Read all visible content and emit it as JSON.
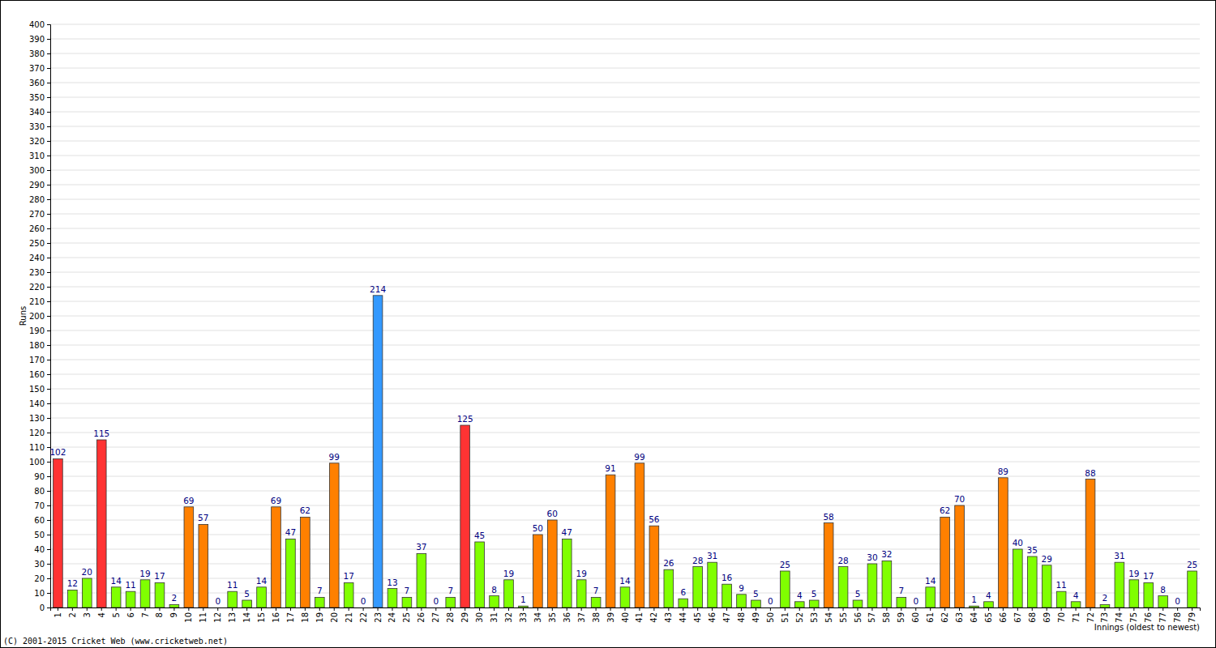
{
  "chart_data": {
    "type": "bar",
    "x_label": "Innings (oldest to newest)",
    "y_label": "Runs",
    "annotations": [
      "(C) 2001-2015 Cricket Web (www.cricketweb.net)"
    ],
    "categories": [
      "1",
      "2",
      "3",
      "4",
      "5",
      "6",
      "7",
      "8",
      "9",
      "10",
      "11",
      "12",
      "13",
      "14",
      "15",
      "16",
      "17",
      "18",
      "19",
      "20",
      "21",
      "22",
      "23",
      "24",
      "25",
      "26",
      "27",
      "28",
      "29",
      "30",
      "31",
      "32",
      "33",
      "34",
      "35",
      "36",
      "37",
      "38",
      "39",
      "40",
      "41",
      "42",
      "43",
      "44",
      "45",
      "46",
      "47",
      "48",
      "49",
      "50",
      "51",
      "52",
      "53",
      "54",
      "55",
      "56",
      "57",
      "58",
      "59",
      "60",
      "61",
      "62",
      "63",
      "64",
      "65",
      "66",
      "67",
      "68",
      "69",
      "70",
      "71",
      "72",
      "73",
      "74",
      "75",
      "76",
      "77",
      "78",
      "79"
    ],
    "values": [
      102,
      12,
      20,
      115,
      14,
      11,
      19,
      17,
      2,
      69,
      57,
      0,
      11,
      5,
      14,
      69,
      47,
      62,
      7,
      99,
      17,
      0,
      214,
      13,
      7,
      37,
      0,
      7,
      125,
      45,
      8,
      19,
      1,
      50,
      60,
      47,
      19,
      7,
      91,
      14,
      99,
      56,
      26,
      6,
      28,
      31,
      16,
      9,
      5,
      0,
      25,
      4,
      5,
      58,
      28,
      5,
      30,
      32,
      7,
      0,
      14,
      62,
      70,
      1,
      4,
      89,
      40,
      35,
      29,
      11,
      4,
      88,
      2,
      31,
      19,
      17,
      8,
      0,
      25
    ],
    "colors": [
      "#ff3333",
      "#80ff00",
      "#80ff00",
      "#ff3333",
      "#80ff00",
      "#80ff00",
      "#80ff00",
      "#80ff00",
      "#80ff00",
      "#ff8000",
      "#ff8000",
      "#80ff00",
      "#80ff00",
      "#80ff00",
      "#80ff00",
      "#ff8000",
      "#80ff00",
      "#ff8000",
      "#80ff00",
      "#ff8000",
      "#80ff00",
      "#80ff00",
      "#3399ff",
      "#80ff00",
      "#80ff00",
      "#80ff00",
      "#80ff00",
      "#80ff00",
      "#ff3333",
      "#80ff00",
      "#80ff00",
      "#80ff00",
      "#80ff00",
      "#ff8000",
      "#ff8000",
      "#80ff00",
      "#80ff00",
      "#80ff00",
      "#ff8000",
      "#80ff00",
      "#ff8000",
      "#ff8000",
      "#80ff00",
      "#80ff00",
      "#80ff00",
      "#80ff00",
      "#80ff00",
      "#80ff00",
      "#80ff00",
      "#80ff00",
      "#80ff00",
      "#80ff00",
      "#80ff00",
      "#ff8000",
      "#80ff00",
      "#80ff00",
      "#80ff00",
      "#80ff00",
      "#80ff00",
      "#80ff00",
      "#80ff00",
      "#ff8000",
      "#ff8000",
      "#80ff00",
      "#80ff00",
      "#ff8000",
      "#80ff00",
      "#80ff00",
      "#80ff00",
      "#80ff00",
      "#80ff00",
      "#ff8000",
      "#80ff00",
      "#80ff00",
      "#80ff00",
      "#80ff00",
      "#80ff00",
      "#80ff00",
      "#80ff00"
    ],
    "ylim": [
      0,
      400
    ],
    "yticks": [
      0,
      10,
      20,
      30,
      40,
      50,
      60,
      70,
      80,
      90,
      100,
      110,
      120,
      130,
      140,
      150,
      160,
      170,
      180,
      190,
      200,
      210,
      220,
      230,
      240,
      250,
      260,
      270,
      280,
      290,
      300,
      310,
      320,
      330,
      340,
      350,
      360,
      370,
      380,
      390,
      400
    ],
    "grid": true,
    "data_labels": true
  }
}
